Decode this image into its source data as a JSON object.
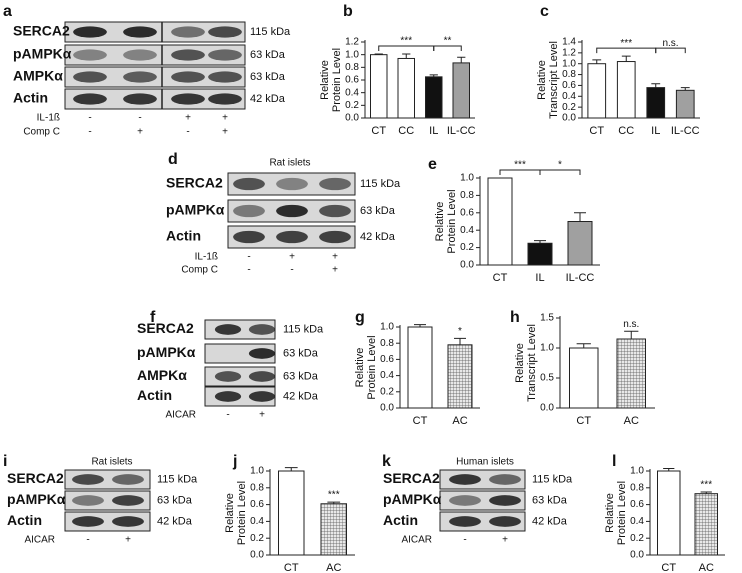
{
  "chart_data": [
    {
      "type": "bar",
      "label": "b",
      "y_label": [
        "Relative",
        "Protein Level"
      ],
      "categories": [
        "CT",
        "CC",
        "IL",
        "IL-CC"
      ],
      "values": [
        1.0,
        0.94,
        0.65,
        0.87
      ],
      "errors": [
        0.01,
        0.07,
        0.03,
        0.09
      ],
      "colors": [
        "#ffffff",
        "#ffffff",
        "#111111",
        "#a0a0a0"
      ],
      "hatched": [
        false,
        false,
        false,
        false
      ],
      "ylim": [
        0,
        1.2
      ],
      "yticks": [
        {
          "value": 0,
          "label": "0.0"
        },
        {
          "value": 0.2,
          "label": "0.2"
        },
        {
          "value": 0.4,
          "label": "0.4"
        },
        {
          "value": 0.6,
          "label": "0.6"
        },
        {
          "value": 0.8,
          "label": "0.8"
        },
        {
          "value": 1.0,
          "label": "1.0"
        },
        {
          "value": 1.2,
          "label": "1.2"
        }
      ],
      "annotations": [
        {
          "text": "***",
          "bars": [
            0,
            2
          ]
        },
        {
          "text": "**",
          "bars": [
            2,
            3
          ]
        }
      ]
    },
    {
      "type": "bar",
      "label": "c",
      "y_label": [
        "Relative",
        "Transcript Level"
      ],
      "categories": [
        "CT",
        "CC",
        "IL",
        "IL-CC"
      ],
      "values": [
        1.0,
        1.04,
        0.56,
        0.51
      ],
      "errors": [
        0.07,
        0.1,
        0.07,
        0.05
      ],
      "colors": [
        "#ffffff",
        "#ffffff",
        "#111111",
        "#a0a0a0"
      ],
      "hatched": [
        false,
        false,
        false,
        false
      ],
      "ylim": [
        0,
        1.4
      ],
      "yticks": [
        {
          "value": 0,
          "label": "0.0"
        },
        {
          "value": 0.2,
          "label": "0.2"
        },
        {
          "value": 0.4,
          "label": "0.4"
        },
        {
          "value": 0.6,
          "label": "0.6"
        },
        {
          "value": 0.8,
          "label": "0.8"
        },
        {
          "value": 1.0,
          "label": "1.0"
        },
        {
          "value": 1.2,
          "label": "1.2"
        },
        {
          "value": 1.4,
          "label": "1.4"
        }
      ],
      "annotations": [
        {
          "text": "***",
          "bars": [
            0,
            2
          ]
        },
        {
          "text": "n.s.",
          "bars": [
            2,
            3
          ]
        }
      ]
    },
    {
      "type": "bar",
      "label": "e",
      "y_label": [
        "Relative",
        "Protein Level"
      ],
      "categories": [
        "CT",
        "IL",
        "IL-CC"
      ],
      "values": [
        1.0,
        0.25,
        0.5
      ],
      "errors": [
        0,
        0.03,
        0.1
      ],
      "colors": [
        "#ffffff",
        "#111111",
        "#a0a0a0"
      ],
      "hatched": [
        false,
        false,
        false
      ],
      "ylim": [
        0,
        1.0
      ],
      "yticks": [
        {
          "value": 0,
          "label": "0.0"
        },
        {
          "value": 0.2,
          "label": "0.2"
        },
        {
          "value": 0.4,
          "label": "0.4"
        },
        {
          "value": 0.6,
          "label": "0.6"
        },
        {
          "value": 0.8,
          "label": "0.8"
        },
        {
          "value": 1.0,
          "label": "1.0"
        }
      ],
      "annotations": [
        {
          "text": "***",
          "bars": [
            0,
            1
          ]
        },
        {
          "text": "*",
          "bars": [
            1,
            2
          ]
        }
      ]
    },
    {
      "type": "bar",
      "label": "g",
      "y_label": [
        "Relative",
        "Protein Level"
      ],
      "categories": [
        "CT",
        "AC"
      ],
      "values": [
        1.0,
        0.78
      ],
      "errors": [
        0.03,
        0.08
      ],
      "colors": [
        "#ffffff",
        "#d0d0d0"
      ],
      "hatched": [
        false,
        true
      ],
      "ylim": [
        0,
        1.0
      ],
      "yticks": [
        {
          "value": 0,
          "label": "0.0"
        },
        {
          "value": 0.2,
          "label": "0.2"
        },
        {
          "value": 0.4,
          "label": "0.4"
        },
        {
          "value": 0.6,
          "label": "0.6"
        },
        {
          "value": 0.8,
          "label": "0.8"
        },
        {
          "value": 1.0,
          "label": "1.0"
        }
      ],
      "annotations": [
        {
          "text": "*",
          "bars": [
            1,
            1
          ]
        }
      ]
    },
    {
      "type": "bar",
      "label": "h",
      "y_label": [
        "Relative",
        "Transcript Level"
      ],
      "categories": [
        "CT",
        "AC"
      ],
      "values": [
        1.0,
        1.15
      ],
      "errors": [
        0.07,
        0.13
      ],
      "colors": [
        "#ffffff",
        "#d0d0d0"
      ],
      "hatched": [
        false,
        true
      ],
      "ylim": [
        0,
        1.5
      ],
      "yticks": [
        {
          "value": 0,
          "label": "0.0"
        },
        {
          "value": 0.5,
          "label": "0.5"
        },
        {
          "value": 1.0,
          "label": "1.0"
        },
        {
          "value": 1.5,
          "label": "1.5"
        }
      ],
      "annotations": [
        {
          "text": "n.s.",
          "bars": [
            1,
            1
          ]
        }
      ]
    },
    {
      "type": "bar",
      "label": "j",
      "y_label": [
        "Relative",
        "Protein Level"
      ],
      "categories": [
        "CT",
        "AC"
      ],
      "values": [
        1.0,
        0.61
      ],
      "errors": [
        0.04,
        0.02
      ],
      "colors": [
        "#ffffff",
        "#d0d0d0"
      ],
      "hatched": [
        false,
        true
      ],
      "ylim": [
        0,
        1.0
      ],
      "yticks": [
        {
          "value": 0,
          "label": "0.0"
        },
        {
          "value": 0.2,
          "label": "0.2"
        },
        {
          "value": 0.4,
          "label": "0.4"
        },
        {
          "value": 0.6,
          "label": "0.6"
        },
        {
          "value": 0.8,
          "label": "0.8"
        },
        {
          "value": 1.0,
          "label": "1.0"
        }
      ],
      "annotations": [
        {
          "text": "***",
          "bars": [
            1,
            1
          ]
        }
      ]
    },
    {
      "type": "bar",
      "label": "l",
      "y_label": [
        "Relative",
        "Protein Level"
      ],
      "categories": [
        "CT",
        "AC"
      ],
      "values": [
        1.0,
        0.73
      ],
      "errors": [
        0.03,
        0.02
      ],
      "colors": [
        "#ffffff",
        "#d0d0d0"
      ],
      "hatched": [
        false,
        true
      ],
      "ylim": [
        0,
        1.0
      ],
      "yticks": [
        {
          "value": 0,
          "label": "0.0"
        },
        {
          "value": 0.2,
          "label": "0.2"
        },
        {
          "value": 0.4,
          "label": "0.4"
        },
        {
          "value": 0.6,
          "label": "0.6"
        },
        {
          "value": 0.8,
          "label": "0.8"
        },
        {
          "value": 1.0,
          "label": "1.0"
        }
      ],
      "annotations": [
        {
          "text": "***",
          "bars": [
            1,
            1
          ]
        }
      ]
    }
  ],
  "blots": [
    {
      "label": "a",
      "rows": [
        {
          "name": "SERCA2",
          "size": "115 kDa"
        },
        {
          "name": "pAMPKα",
          "size": "63 kDa"
        },
        {
          "name": "AMPKα",
          "size": "63 kDa"
        },
        {
          "name": "Actin",
          "size": "42 kDa"
        }
      ],
      "conditions": [
        {
          "name": "IL-1ß",
          "signs": [
            "-",
            "-",
            "+",
            "+"
          ]
        },
        {
          "name": "Comp C",
          "signs": [
            "-",
            "+",
            "-",
            "+"
          ]
        }
      ]
    },
    {
      "label": "d",
      "title": "Rat islets",
      "rows": [
        {
          "name": "SERCA2",
          "size": "115 kDa"
        },
        {
          "name": "pAMPKα",
          "size": "63 kDa"
        },
        {
          "name": "Actin",
          "size": "42 kDa"
        }
      ],
      "conditions": [
        {
          "name": "IL-1ß",
          "signs": [
            "-",
            "+",
            "+"
          ]
        },
        {
          "name": "Comp C",
          "signs": [
            "-",
            "-",
            "+"
          ]
        }
      ]
    },
    {
      "label": "f",
      "rows": [
        {
          "name": "SERCA2",
          "size": "115 kDa"
        },
        {
          "name": "pAMPKα",
          "size": "63 kDa"
        },
        {
          "name": "AMPKα",
          "size": "63 kDa"
        },
        {
          "name": "Actin",
          "size": "42 kDa"
        }
      ],
      "conditions": [
        {
          "name": "AICAR",
          "signs": [
            "-",
            "+"
          ]
        }
      ]
    },
    {
      "label": "i",
      "title": "Rat islets",
      "rows": [
        {
          "name": "SERCA2",
          "size": "115 kDa"
        },
        {
          "name": "pAMPKα",
          "size": "63 kDa"
        },
        {
          "name": "Actin",
          "size": "42 kDa"
        }
      ],
      "conditions": [
        {
          "name": "AICAR",
          "signs": [
            "-",
            "+"
          ]
        }
      ]
    },
    {
      "label": "k",
      "title": "Human islets",
      "rows": [
        {
          "name": "SERCA2",
          "size": "115 kDa"
        },
        {
          "name": "pAMPKα",
          "size": "63 kDa"
        },
        {
          "name": "Actin",
          "size": "42 kDa"
        }
      ],
      "conditions": [
        {
          "name": "AICAR",
          "signs": [
            "-",
            "+"
          ]
        }
      ]
    }
  ]
}
